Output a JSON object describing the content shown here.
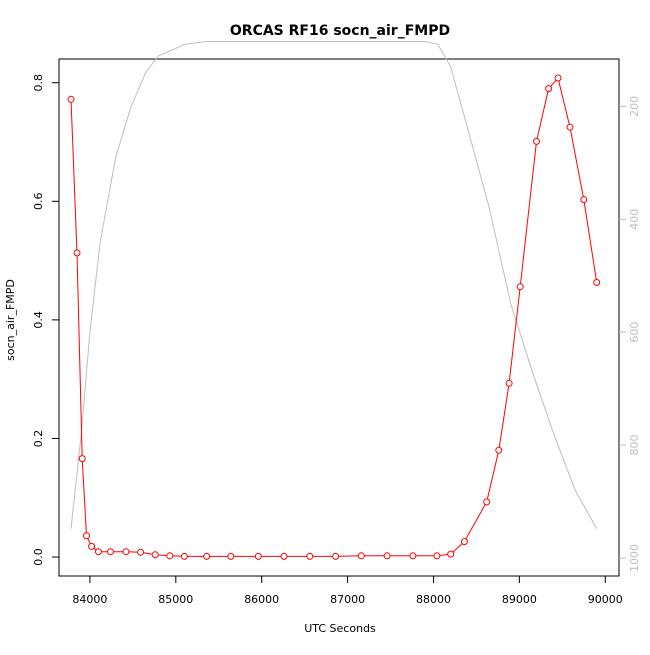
{
  "chart_data": {
    "type": "line",
    "title": "ORCAS RF16 socn_air_FMPD",
    "xlabel": "UTC Seconds",
    "ylabel": "socn_air_FMPD",
    "xlim": [
      83640,
      90160
    ],
    "ylim": [
      -0.032,
      0.84
    ],
    "x_ticks": [
      84000,
      85000,
      86000,
      87000,
      88000,
      89000,
      90000
    ],
    "y_ticks": [
      0.0,
      0.2,
      0.4,
      0.6,
      0.8
    ],
    "x_tick_labels": [
      "84000",
      "85000",
      "86000",
      "87000",
      "88000",
      "89000",
      "90000"
    ],
    "y_tick_labels": [
      "0.0",
      "0.2",
      "0.4",
      "0.6",
      "0.8"
    ],
    "y2lim": [
      1032,
      116
    ],
    "y2_ticks": [
      200,
      400,
      600,
      800,
      1000
    ],
    "y2_tick_labels": [
      "200",
      "400",
      "600",
      "800",
      "1000"
    ],
    "series": [
      {
        "color": "#ff0000",
        "marker": "open-circle",
        "axis": "left",
        "x": [
          83780,
          83850,
          83910,
          83960,
          84020,
          84100,
          84240,
          84420,
          84590,
          84760,
          84930,
          85100,
          85360,
          85640,
          85960,
          86260,
          86560,
          86860,
          87160,
          87460,
          87760,
          88040,
          88200,
          88360,
          88620,
          88760,
          88880,
          89010,
          89200,
          89340,
          89450,
          89590,
          89750,
          89900
        ],
        "values": [
          0.772,
          0.513,
          0.166,
          0.036,
          0.018,
          0.009,
          0.009,
          0.009,
          0.008,
          0.004,
          0.002,
          0.001,
          0.001,
          0.001,
          0.001,
          0.001,
          0.001,
          0.001,
          0.002,
          0.002,
          0.002,
          0.002,
          0.005,
          0.026,
          0.093,
          0.18,
          0.293,
          0.456,
          0.701,
          0.79,
          0.808,
          0.725,
          0.603,
          0.463
        ]
      },
      {
        "color": "#bebebe",
        "marker": "none",
        "axis": "right",
        "x": [
          83780,
          83900,
          84000,
          84120,
          84300,
          84480,
          84650,
          84800,
          84960,
          85100,
          85350,
          85650,
          86000,
          86500,
          87000,
          87500,
          87900,
          88050,
          88200,
          88400,
          88650,
          88900,
          89150,
          89400,
          89650,
          89900
        ],
        "values": [
          948,
          780,
          600,
          440,
          290,
          200,
          140,
          110,
          100,
          90,
          85,
          85,
          85,
          85,
          85,
          85,
          85,
          90,
          130,
          240,
          380,
          550,
          670,
          780,
          880,
          948
        ]
      }
    ]
  }
}
